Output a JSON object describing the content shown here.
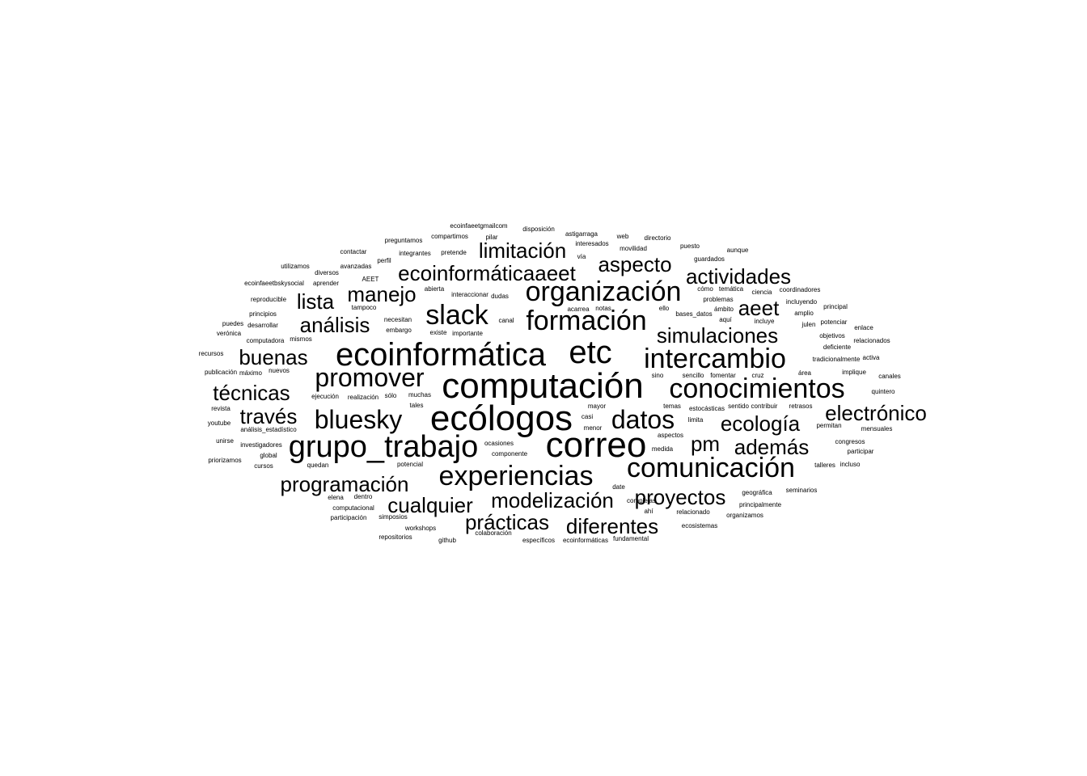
{
  "word_cloud": {
    "text_color": "#000000",
    "background_color": "#ffffff",
    "words": [
      "computación",
      "ecólogos",
      "correo",
      "ecoinformática",
      "etc",
      "grupo_trabajo",
      "organización",
      "slack",
      "formación",
      "intercambio",
      "conocimientos",
      "comunicación",
      "experiencias",
      "promover",
      "bluesky",
      "datos",
      "limitación",
      "ecoinformáticaaeet",
      "aspecto",
      "actividades",
      "manejo",
      "lista",
      "análisis",
      "aeet",
      "simulaciones",
      "buenas",
      "técnicas",
      "través",
      "electrónico",
      "ecología",
      "pm",
      "además",
      "programación",
      "cualquier",
      "modelización",
      "proyectos",
      "prácticas",
      "diferentes",
      "ecoinfaeetgmailcom",
      "disposición",
      "astigarraga",
      "web",
      "directorio",
      "preguntamos",
      "compartimos",
      "pilar",
      "interesados",
      "movilidad",
      "puesto",
      "contactar",
      "perfil",
      "integrantes",
      "pretende",
      "vía",
      "aunque",
      "utilizamos",
      "avanzadas",
      "guardados",
      "diversos",
      "ecoinfaeetbskysocial",
      "AEET",
      "aprender",
      "abierta",
      "cómo",
      "temática",
      "ciencia",
      "coordinadores",
      "reproducible",
      "tampoco",
      "interaccionar",
      "dudas",
      "problemas",
      "incluyendo",
      "principios",
      "necesitan",
      "acarrea",
      "notas",
      "ello",
      "ámbito",
      "principal",
      "puedes",
      "desarrollar",
      "embargo",
      "canal",
      "bases_datos",
      "aquí",
      "incluye",
      "amplio",
      "verónica",
      "existe",
      "importante",
      "potenciar",
      "julen",
      "enlace",
      "computadora",
      "mismos",
      "objetivos",
      "relacionados",
      "recursos",
      "deficiente",
      "tradicionalmente",
      "activa",
      "publicación",
      "máximo",
      "nuevos",
      "sino",
      "sencillo",
      "fomentar",
      "cruz",
      "área",
      "implique",
      "canales",
      "quintero",
      "ejecución",
      "realización",
      "sólo",
      "muchas",
      "revista",
      "tales",
      "mayor",
      "temas",
      "estocásticas",
      "sentido",
      "contribuir",
      "retrasos",
      "casi",
      "limita",
      "youtube",
      "análisis_estadístico",
      "menor",
      "permitan",
      "mensuales",
      "aspectos",
      "unirse",
      "investigadores",
      "ocasiones",
      "congresos",
      "medida",
      "global",
      "componente",
      "participar",
      "priorizamos",
      "cursos",
      "quedan",
      "potencial",
      "talleres",
      "incluso",
      "date",
      "geográfica",
      "seminarios",
      "elena",
      "dentro",
      "complejas",
      "principalmente",
      "computacional",
      "ahí",
      "relacionado",
      "organizamos",
      "participación",
      "simposios",
      "workshops",
      "ecosistemas",
      "colaboración",
      "repositorios",
      "github",
      "específicos",
      "ecoinformáticas",
      "fundamental"
    ]
  }
}
